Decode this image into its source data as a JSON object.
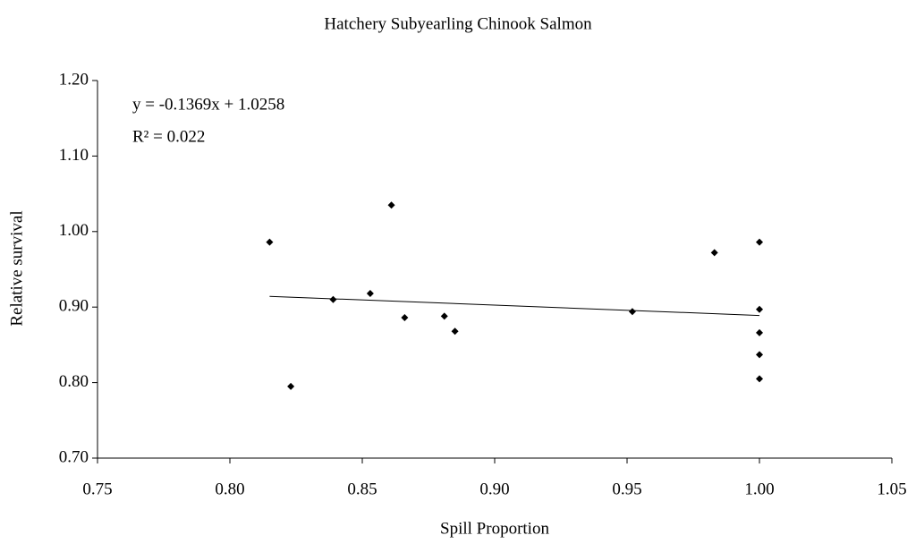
{
  "chart_data": {
    "type": "scatter",
    "title": "Hatchery Subyearling Chinook Salmon",
    "x_label": "Spill Proportion",
    "y_label": "Relative survival",
    "color": "#000000",
    "x": [
      0.815,
      0.823,
      0.839,
      0.853,
      0.861,
      0.866,
      0.881,
      0.885,
      0.952,
      0.983,
      1.0,
      1.0,
      1.0,
      1.0,
      1.0
    ],
    "values": [
      0.986,
      0.795,
      0.91,
      0.918,
      1.035,
      0.886,
      0.888,
      0.868,
      0.894,
      0.972,
      0.986,
      0.897,
      0.866,
      0.837,
      0.805
    ],
    "xlim": [
      0.75,
      1.05
    ],
    "xticks": [
      0.75,
      {
        "value": 0.8,
        "label": "0.80"
      },
      0.85,
      {
        "value": 0.9,
        "label": "0.90"
      },
      0.95,
      {
        "value": 1.0,
        "label": "1.00"
      },
      1.05
    ],
    "ylim": [
      0.7,
      1.2
    ],
    "yticks": [
      {
        "value": 0.7,
        "label": "0.70"
      },
      {
        "value": 0.8,
        "label": "0.80"
      },
      {
        "value": 0.9,
        "label": "0.90"
      },
      {
        "value": 1.0,
        "label": "1.00"
      },
      {
        "value": 1.1,
        "label": "1.10"
      },
      {
        "value": 1.2,
        "label": "1.20"
      }
    ],
    "trendline": {
      "slope": -0.1369,
      "intercept": 1.0258,
      "equation": "y = -0.1369x + 1.0258",
      "r2": "R² = 0.022"
    }
  }
}
